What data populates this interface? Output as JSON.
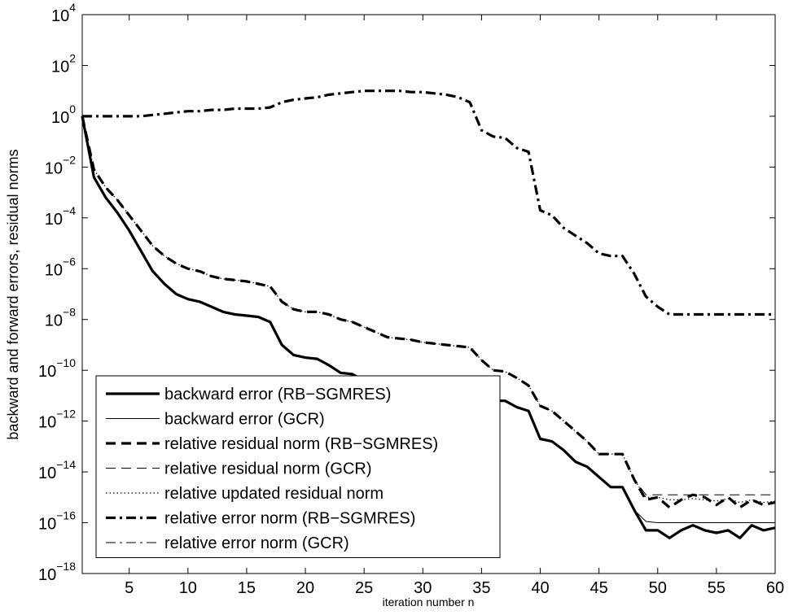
{
  "chart_data": {
    "type": "line",
    "title": "",
    "xlabel": "iteration number n",
    "ylabel": "backward and forward errors, residual norms",
    "xlim": [
      1,
      60
    ],
    "ylim_log10": [
      -18,
      4
    ],
    "yscale": "log",
    "grid": false,
    "legend_position": "bottom-left",
    "x_ticks": [
      5,
      10,
      15,
      20,
      25,
      30,
      35,
      40,
      45,
      50,
      55,
      60
    ],
    "y_tick_exponents": [
      -18,
      -16,
      -14,
      -12,
      -10,
      -8,
      -6,
      -4,
      -2,
      0,
      2,
      4
    ],
    "y_tick_base": "10",
    "series": [
      {
        "name": "backward error (RB−SGMRES)",
        "style": "thick-solid",
        "x": [
          1,
          2,
          3,
          4,
          5,
          6,
          7,
          8,
          9,
          10,
          11,
          12,
          13,
          14,
          15,
          16,
          17,
          18,
          19,
          20,
          21,
          22,
          23,
          24,
          25,
          26,
          27,
          28,
          29,
          30,
          31,
          32,
          33,
          34,
          35,
          36,
          37,
          38,
          39,
          40,
          41,
          42,
          43,
          44,
          45,
          46,
          47,
          48,
          49,
          50,
          51,
          52,
          53,
          54,
          55,
          56,
          57,
          58,
          59,
          60
        ],
        "log10_y": [
          0,
          -2.4,
          -3.2,
          -3.8,
          -4.5,
          -5.3,
          -6.1,
          -6.6,
          -7.0,
          -7.2,
          -7.3,
          -7.5,
          -7.7,
          -7.8,
          -7.85,
          -7.9,
          -8.1,
          -9.0,
          -9.4,
          -9.5,
          -9.55,
          -9.8,
          -10.1,
          -10.15,
          -10.4,
          -10.55,
          -10.6,
          -10.7,
          -10.8,
          -10.85,
          -10.9,
          -11.0,
          -11.05,
          -11.1,
          -11.15,
          -11.2,
          -11.2,
          -11.45,
          -11.6,
          -12.7,
          -12.8,
          -13.15,
          -13.6,
          -13.8,
          -14.2,
          -14.6,
          -14.6,
          -15.5,
          -16.3,
          -16.3,
          -16.6,
          -16.3,
          -16.1,
          -16.3,
          -16.4,
          -16.3,
          -16.6,
          -16.1,
          -16.3,
          -16.2
        ]
      },
      {
        "name": "backward error (GCR)",
        "style": "thin-solid",
        "x": [
          1,
          2,
          3,
          4,
          5,
          6,
          7,
          8,
          9,
          10,
          11,
          12,
          13,
          14,
          15,
          16,
          17,
          18,
          19,
          20,
          21,
          22,
          23,
          24,
          25,
          26,
          27,
          28,
          29,
          30,
          31,
          32,
          33,
          34,
          35,
          36,
          37,
          38,
          39,
          40,
          41,
          42,
          43,
          44,
          45,
          46,
          47,
          48,
          49,
          50,
          51,
          52,
          53,
          54,
          55,
          56,
          57,
          58,
          59,
          60
        ],
        "log10_y": [
          0,
          -2.4,
          -3.2,
          -3.8,
          -4.5,
          -5.3,
          -6.1,
          -6.6,
          -7.0,
          -7.2,
          -7.3,
          -7.5,
          -7.7,
          -7.8,
          -7.85,
          -7.9,
          -8.1,
          -9.0,
          -9.4,
          -9.5,
          -9.55,
          -9.8,
          -10.1,
          -10.15,
          -10.4,
          -10.55,
          -10.6,
          -10.7,
          -10.8,
          -10.85,
          -10.9,
          -11.0,
          -11.05,
          -11.1,
          -11.15,
          -11.2,
          -11.2,
          -11.45,
          -11.6,
          -12.7,
          -12.8,
          -13.15,
          -13.6,
          -13.8,
          -14.2,
          -14.6,
          -14.6,
          -15.5,
          -15.95,
          -16.0,
          -16.0,
          -16.0,
          -16.0,
          -16.0,
          -16.0,
          -16.0,
          -16.0,
          -16.0,
          -16.0,
          -16.0
        ]
      },
      {
        "name": "relative residual norm (RB−SGMRES)",
        "style": "thick-dashed",
        "x": [
          1,
          2,
          3,
          4,
          5,
          6,
          7,
          8,
          9,
          10,
          11,
          12,
          13,
          14,
          15,
          16,
          17,
          18,
          19,
          20,
          21,
          22,
          23,
          24,
          25,
          26,
          27,
          28,
          29,
          30,
          31,
          32,
          33,
          34,
          35,
          36,
          37,
          38,
          39,
          40,
          41,
          42,
          43,
          44,
          45,
          46,
          47,
          48,
          49,
          50,
          51,
          52,
          53,
          54,
          55,
          56,
          57,
          58,
          59,
          60
        ],
        "log10_y": [
          0,
          -2.1,
          -2.8,
          -3.3,
          -3.9,
          -4.5,
          -5.1,
          -5.5,
          -5.8,
          -6.0,
          -6.1,
          -6.3,
          -6.4,
          -6.45,
          -6.5,
          -6.6,
          -6.7,
          -7.3,
          -7.6,
          -7.7,
          -7.7,
          -7.8,
          -8.0,
          -8.1,
          -8.3,
          -8.5,
          -8.7,
          -8.75,
          -8.8,
          -8.9,
          -8.95,
          -9.0,
          -9.05,
          -9.1,
          -9.6,
          -10.0,
          -10.05,
          -10.3,
          -10.6,
          -11.4,
          -11.6,
          -12.0,
          -12.4,
          -12.8,
          -13.3,
          -13.3,
          -13.3,
          -14.3,
          -15.1,
          -15.0,
          -15.4,
          -15.1,
          -14.9,
          -15.0,
          -15.3,
          -15.0,
          -15.4,
          -15.1,
          -15.3,
          -15.2
        ]
      },
      {
        "name": "relative residual norm (GCR)",
        "style": "thin-dashed",
        "x": [
          1,
          2,
          3,
          4,
          5,
          6,
          7,
          8,
          9,
          10,
          11,
          12,
          13,
          14,
          15,
          16,
          17,
          18,
          19,
          20,
          21,
          22,
          23,
          24,
          25,
          26,
          27,
          28,
          29,
          30,
          31,
          32,
          33,
          34,
          35,
          36,
          37,
          38,
          39,
          40,
          41,
          42,
          43,
          44,
          45,
          46,
          47,
          48,
          49,
          50,
          51,
          52,
          53,
          54,
          55,
          56,
          57,
          58,
          59,
          60
        ],
        "log10_y": [
          0,
          -2.1,
          -2.8,
          -3.3,
          -3.9,
          -4.5,
          -5.1,
          -5.5,
          -5.8,
          -6.0,
          -6.1,
          -6.3,
          -6.4,
          -6.45,
          -6.5,
          -6.6,
          -6.7,
          -7.3,
          -7.6,
          -7.7,
          -7.7,
          -7.8,
          -8.0,
          -8.1,
          -8.3,
          -8.5,
          -8.7,
          -8.75,
          -8.8,
          -8.9,
          -8.95,
          -9.0,
          -9.05,
          -9.1,
          -9.6,
          -10.0,
          -10.05,
          -10.3,
          -10.6,
          -11.4,
          -11.6,
          -12.0,
          -12.4,
          -12.8,
          -13.3,
          -13.3,
          -13.3,
          -14.3,
          -14.9,
          -14.9,
          -14.9,
          -14.9,
          -14.9,
          -14.9,
          -14.9,
          -14.9,
          -14.9,
          -14.9,
          -14.9,
          -14.9
        ]
      },
      {
        "name": "relative updated residual norm",
        "style": "dotted",
        "x": [
          1,
          2,
          3,
          4,
          5,
          6,
          7,
          8,
          9,
          10,
          11,
          12,
          13,
          14,
          15,
          16,
          17,
          18,
          19,
          20,
          21,
          22,
          23,
          24,
          25,
          26,
          27,
          28,
          29,
          30,
          31,
          32,
          33,
          34,
          35,
          36,
          37,
          38,
          39,
          40,
          41,
          42,
          43,
          44,
          45,
          46,
          47,
          48,
          49,
          50,
          51,
          52,
          53,
          54,
          55,
          56,
          57,
          58,
          59,
          60
        ],
        "log10_y": [
          0,
          -2.1,
          -2.8,
          -3.3,
          -3.9,
          -4.5,
          -5.1,
          -5.5,
          -5.8,
          -6.0,
          -6.1,
          -6.3,
          -6.4,
          -6.45,
          -6.5,
          -6.6,
          -6.7,
          -7.3,
          -7.6,
          -7.7,
          -7.7,
          -7.8,
          -8.0,
          -8.1,
          -8.3,
          -8.5,
          -8.7,
          -8.75,
          -8.8,
          -8.9,
          -8.95,
          -9.0,
          -9.05,
          -9.1,
          -9.6,
          -10.0,
          -10.05,
          -10.3,
          -10.6,
          -11.4,
          -11.6,
          -12.0,
          -12.4,
          -12.8,
          -13.3,
          -13.3,
          -13.3,
          -14.3,
          -15.0,
          -15.0,
          -15.1,
          -15.1,
          -15.05,
          -15.1,
          -15.15,
          -15.05,
          -15.2,
          -15.1,
          -15.2,
          -15.15
        ]
      },
      {
        "name": "relative error norm (RB−SGMRES)",
        "style": "thick-dashdot",
        "x": [
          1,
          2,
          3,
          4,
          5,
          6,
          7,
          8,
          9,
          10,
          11,
          12,
          13,
          14,
          15,
          16,
          17,
          18,
          19,
          20,
          21,
          22,
          23,
          24,
          25,
          26,
          27,
          28,
          29,
          30,
          31,
          32,
          33,
          34,
          35,
          36,
          37,
          38,
          39,
          40,
          41,
          42,
          43,
          44,
          45,
          46,
          47,
          48,
          49,
          50,
          51,
          52,
          53,
          54,
          55,
          56,
          57,
          58,
          59,
          60
        ],
        "log10_y": [
          0,
          0,
          0,
          0,
          0,
          0,
          0.05,
          0.1,
          0.15,
          0.2,
          0.2,
          0.25,
          0.25,
          0.3,
          0.3,
          0.3,
          0.35,
          0.55,
          0.65,
          0.7,
          0.75,
          0.85,
          0.9,
          0.95,
          1.0,
          1.0,
          1.0,
          1.0,
          0.95,
          0.95,
          0.9,
          0.85,
          0.75,
          0.55,
          -0.55,
          -0.8,
          -0.85,
          -1.25,
          -1.4,
          -3.7,
          -3.9,
          -4.4,
          -4.7,
          -5.0,
          -5.4,
          -5.5,
          -5.5,
          -6.2,
          -7.1,
          -7.5,
          -7.8,
          -7.8,
          -7.8,
          -7.8,
          -7.8,
          -7.8,
          -7.8,
          -7.8,
          -7.8,
          -7.8
        ]
      },
      {
        "name": "relative error norm (GCR)",
        "style": "thin-dashdot",
        "x": [
          1,
          2,
          3,
          4,
          5,
          6,
          7,
          8,
          9,
          10,
          11,
          12,
          13,
          14,
          15,
          16,
          17,
          18,
          19,
          20,
          21,
          22,
          23,
          24,
          25,
          26,
          27,
          28,
          29,
          30,
          31,
          32,
          33,
          34,
          35,
          36,
          37,
          38,
          39,
          40,
          41,
          42,
          43,
          44,
          45,
          46,
          47,
          48,
          49,
          50,
          51,
          52,
          53,
          54,
          55,
          56,
          57,
          58,
          59,
          60
        ],
        "log10_y": [
          0,
          0,
          0,
          0,
          0,
          0,
          0.05,
          0.1,
          0.15,
          0.2,
          0.2,
          0.25,
          0.25,
          0.3,
          0.3,
          0.3,
          0.35,
          0.55,
          0.65,
          0.7,
          0.75,
          0.85,
          0.9,
          0.95,
          1.0,
          1.0,
          1.0,
          1.0,
          0.95,
          0.95,
          0.9,
          0.85,
          0.75,
          0.55,
          -0.55,
          -0.8,
          -0.85,
          -1.25,
          -1.4,
          -3.7,
          -3.9,
          -4.4,
          -4.7,
          -5.0,
          -5.4,
          -5.5,
          -5.5,
          -6.2,
          -7.1,
          -7.5,
          -7.8,
          -7.8,
          -7.8,
          -7.8,
          -7.8,
          -7.8,
          -7.8,
          -7.8,
          -7.8,
          -7.8
        ]
      }
    ]
  }
}
